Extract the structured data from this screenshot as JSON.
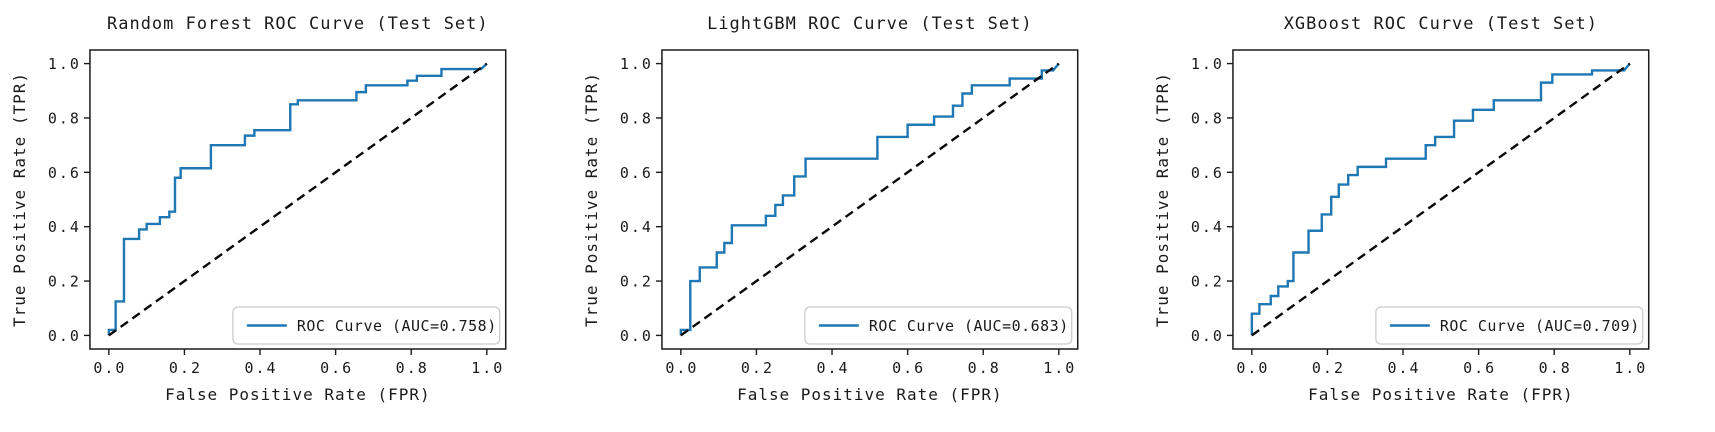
{
  "figure": {
    "background": "#ffffff",
    "curve_color": "#1f77b4",
    "diagonal_color": "#0a0a0a",
    "spine_color": "#1a1a1a",
    "legend_border_color": "#cccccc"
  },
  "chart_data": [
    {
      "type": "line",
      "title": "Random Forest ROC Curve (Test Set)",
      "xlabel": "False Positive Rate (FPR)",
      "ylabel": "True Positive Rate (TPR)",
      "xlim": [
        -0.05,
        1.05
      ],
      "ylim": [
        -0.05,
        1.05
      ],
      "x_ticks": [
        0.0,
        0.2,
        0.4,
        0.6,
        0.8,
        1.0
      ],
      "y_ticks": [
        0.0,
        0.2,
        0.4,
        0.6,
        0.8,
        1.0
      ],
      "grid": false,
      "legend": {
        "label": "ROC Curve (AUC=0.758)",
        "position": "lower right"
      },
      "series": [
        {
          "name": "ROC Curve",
          "auc": 0.758,
          "color": "#1f77b4",
          "line_style": "solid",
          "fpr": [
            0,
            0,
            0.018,
            0.018,
            0.04,
            0.04,
            0.08,
            0.08,
            0.1,
            0.1,
            0.135,
            0.135,
            0.16,
            0.16,
            0.175,
            0.175,
            0.19,
            0.19,
            0.27,
            0.27,
            0.36,
            0.36,
            0.385,
            0.385,
            0.48,
            0.48,
            0.5,
            0.5,
            0.655,
            0.655,
            0.68,
            0.68,
            0.79,
            0.79,
            0.815,
            0.815,
            0.88,
            0.88,
            0.985,
            1.0
          ],
          "tpr": [
            0,
            0.02,
            0.02,
            0.125,
            0.125,
            0.355,
            0.355,
            0.39,
            0.39,
            0.41,
            0.41,
            0.435,
            0.435,
            0.455,
            0.455,
            0.58,
            0.58,
            0.615,
            0.615,
            0.7,
            0.7,
            0.735,
            0.735,
            0.755,
            0.755,
            0.85,
            0.85,
            0.865,
            0.865,
            0.895,
            0.895,
            0.92,
            0.92,
            0.937,
            0.937,
            0.955,
            0.955,
            0.98,
            0.98,
            1.0
          ]
        },
        {
          "name": "chance-diagonal",
          "color": "#0a0a0a",
          "line_style": "dashed",
          "fpr": [
            0,
            1
          ],
          "tpr": [
            0,
            1
          ]
        }
      ]
    },
    {
      "type": "line",
      "title": "LightGBM ROC Curve (Test Set)",
      "xlabel": "False Positive Rate (FPR)",
      "ylabel": "True Positive Rate (TPR)",
      "xlim": [
        -0.05,
        1.05
      ],
      "ylim": [
        -0.05,
        1.05
      ],
      "x_ticks": [
        0.0,
        0.2,
        0.4,
        0.6,
        0.8,
        1.0
      ],
      "y_ticks": [
        0.0,
        0.2,
        0.4,
        0.6,
        0.8,
        1.0
      ],
      "grid": false,
      "legend": {
        "label": "ROC Curve (AUC=0.683)",
        "position": "lower right"
      },
      "series": [
        {
          "name": "ROC Curve",
          "auc": 0.683,
          "color": "#1f77b4",
          "line_style": "solid",
          "fpr": [
            0,
            0,
            0.025,
            0.025,
            0.05,
            0.05,
            0.095,
            0.095,
            0.115,
            0.115,
            0.135,
            0.135,
            0.225,
            0.225,
            0.25,
            0.25,
            0.27,
            0.27,
            0.3,
            0.3,
            0.33,
            0.33,
            0.52,
            0.52,
            0.6,
            0.6,
            0.67,
            0.67,
            0.72,
            0.72,
            0.745,
            0.745,
            0.77,
            0.77,
            0.87,
            0.87,
            0.955,
            0.955,
            0.985,
            1.0
          ],
          "tpr": [
            0,
            0.02,
            0.02,
            0.2,
            0.2,
            0.25,
            0.25,
            0.305,
            0.305,
            0.34,
            0.34,
            0.405,
            0.405,
            0.44,
            0.44,
            0.48,
            0.48,
            0.515,
            0.515,
            0.585,
            0.585,
            0.65,
            0.65,
            0.73,
            0.73,
            0.775,
            0.775,
            0.805,
            0.805,
            0.845,
            0.845,
            0.89,
            0.89,
            0.92,
            0.92,
            0.945,
            0.945,
            0.975,
            0.975,
            1.0
          ]
        },
        {
          "name": "chance-diagonal",
          "color": "#0a0a0a",
          "line_style": "dashed",
          "fpr": [
            0,
            1
          ],
          "tpr": [
            0,
            1
          ]
        }
      ]
    },
    {
      "type": "line",
      "title": "XGBoost ROC Curve (Test Set)",
      "xlabel": "False Positive Rate (FPR)",
      "ylabel": "True Positive Rate (TPR)",
      "xlim": [
        -0.05,
        1.05
      ],
      "ylim": [
        -0.05,
        1.05
      ],
      "x_ticks": [
        0.0,
        0.2,
        0.4,
        0.6,
        0.8,
        1.0
      ],
      "y_ticks": [
        0.0,
        0.2,
        0.4,
        0.6,
        0.8,
        1.0
      ],
      "grid": false,
      "legend": {
        "label": "ROC Curve (AUC=0.709)",
        "position": "lower right"
      },
      "series": [
        {
          "name": "ROC Curve",
          "auc": 0.709,
          "color": "#1f77b4",
          "line_style": "solid",
          "fpr": [
            0,
            0,
            0.02,
            0.02,
            0.05,
            0.05,
            0.07,
            0.07,
            0.095,
            0.095,
            0.11,
            0.11,
            0.15,
            0.15,
            0.185,
            0.185,
            0.21,
            0.21,
            0.23,
            0.23,
            0.255,
            0.255,
            0.28,
            0.28,
            0.355,
            0.355,
            0.46,
            0.46,
            0.485,
            0.485,
            0.535,
            0.535,
            0.585,
            0.585,
            0.64,
            0.64,
            0.765,
            0.765,
            0.795,
            0.795,
            0.9,
            0.9,
            0.985,
            1.0
          ],
          "tpr": [
            0,
            0.08,
            0.08,
            0.115,
            0.115,
            0.145,
            0.145,
            0.18,
            0.18,
            0.2,
            0.2,
            0.305,
            0.305,
            0.385,
            0.385,
            0.445,
            0.445,
            0.51,
            0.51,
            0.555,
            0.555,
            0.59,
            0.59,
            0.62,
            0.62,
            0.65,
            0.65,
            0.7,
            0.7,
            0.73,
            0.73,
            0.79,
            0.79,
            0.83,
            0.83,
            0.865,
            0.865,
            0.93,
            0.93,
            0.96,
            0.96,
            0.975,
            0.975,
            1.0
          ]
        },
        {
          "name": "chance-diagonal",
          "color": "#0a0a0a",
          "line_style": "dashed",
          "fpr": [
            0,
            1
          ],
          "tpr": [
            0,
            1
          ]
        }
      ]
    }
  ]
}
